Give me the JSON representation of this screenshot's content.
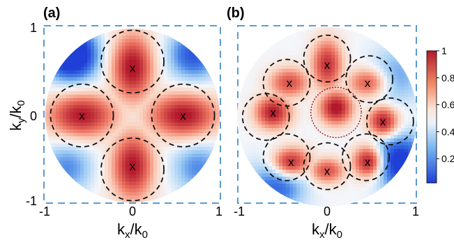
{
  "chart_data": [
    {
      "type": "heatmap",
      "panel_label": "(a)",
      "xlabel": "k_x/k_0",
      "ylabel": "k_y/k_0",
      "xlim": [
        -1,
        1
      ],
      "ylim": [
        -1,
        1
      ],
      "xticks": [
        "-1",
        "0",
        "1"
      ],
      "yticks": [
        "-1",
        "0",
        "1"
      ],
      "domain_shape": "unit disk",
      "peaks": [
        {
          "x": 0.0,
          "y": 0.55,
          "amp": 1.0,
          "sx": 0.16,
          "sy": 0.26,
          "marker": "x"
        },
        {
          "x": -0.58,
          "y": 0.0,
          "amp": 0.95,
          "sx": 0.27,
          "sy": 0.17,
          "marker": "x"
        },
        {
          "x": 0.58,
          "y": 0.0,
          "amp": 0.98,
          "sx": 0.27,
          "sy": 0.17,
          "marker": "x"
        },
        {
          "x": 0.0,
          "y": -0.58,
          "amp": 0.97,
          "sx": 0.16,
          "sy": 0.26,
          "marker": "x"
        }
      ],
      "circles": [
        {
          "x": 0.0,
          "y": 0.62,
          "r": 0.36,
          "style": "black-dashed"
        },
        {
          "x": -0.58,
          "y": 0.0,
          "r": 0.36,
          "style": "black-dashed"
        },
        {
          "x": 0.58,
          "y": 0.0,
          "r": 0.36,
          "style": "black-dashed"
        },
        {
          "x": 0.0,
          "y": -0.62,
          "r": 0.36,
          "style": "black-dashed"
        }
      ],
      "low_regions": [
        {
          "x": -0.7,
          "y": 0.7,
          "depth": 0.8
        },
        {
          "x": 0.7,
          "y": 0.7,
          "depth": 0.45
        },
        {
          "x": -0.75,
          "y": -0.6,
          "depth": 0.3
        },
        {
          "x": 0.75,
          "y": -0.6,
          "depth": 0.3
        }
      ]
    },
    {
      "type": "heatmap",
      "panel_label": "(b)",
      "xlabel": "k_x/k_0",
      "ylabel": "",
      "xlim": [
        -1,
        1
      ],
      "ylim": [
        -1,
        1
      ],
      "xticks": [
        "-1",
        "0",
        "1"
      ],
      "domain_shape": "unit disk",
      "peaks": [
        {
          "x": 0.1,
          "y": 0.1,
          "amp": 1.0,
          "sx": 0.13,
          "sy": 0.13,
          "marker": "none"
        },
        {
          "x": 0.0,
          "y": 0.58,
          "amp": 0.85,
          "sx": 0.12,
          "sy": 0.2,
          "marker": "x"
        },
        {
          "x": -0.42,
          "y": 0.38,
          "amp": 0.7,
          "sx": 0.16,
          "sy": 0.12,
          "marker": "x"
        },
        {
          "x": 0.45,
          "y": 0.38,
          "amp": 0.65,
          "sx": 0.16,
          "sy": 0.12,
          "marker": "x"
        },
        {
          "x": -0.6,
          "y": 0.05,
          "amp": 0.95,
          "sx": 0.14,
          "sy": 0.13,
          "marker": "x"
        },
        {
          "x": 0.62,
          "y": -0.05,
          "amp": 0.9,
          "sx": 0.12,
          "sy": 0.12,
          "marker": "x"
        },
        {
          "x": -0.4,
          "y": -0.5,
          "amp": 0.85,
          "sx": 0.16,
          "sy": 0.12,
          "marker": "x"
        },
        {
          "x": 0.45,
          "y": -0.5,
          "amp": 0.9,
          "sx": 0.12,
          "sy": 0.13,
          "marker": "x"
        },
        {
          "x": 0.0,
          "y": -0.6,
          "amp": 0.7,
          "sx": 0.14,
          "sy": 0.1,
          "marker": "x"
        }
      ],
      "circles": [
        {
          "x": 0.0,
          "y": 0.65,
          "r": 0.26,
          "style": "black-dashed"
        },
        {
          "x": -0.45,
          "y": 0.38,
          "r": 0.26,
          "style": "black-dashed"
        },
        {
          "x": 0.47,
          "y": 0.42,
          "r": 0.26,
          "style": "black-dashed"
        },
        {
          "x": -0.68,
          "y": 0.0,
          "r": 0.26,
          "style": "black-dashed"
        },
        {
          "x": 0.7,
          "y": -0.05,
          "r": 0.26,
          "style": "black-dashed"
        },
        {
          "x": -0.45,
          "y": -0.45,
          "r": 0.26,
          "style": "black-dashed"
        },
        {
          "x": 0.43,
          "y": -0.45,
          "r": 0.26,
          "style": "black-dashed"
        },
        {
          "x": 0.0,
          "y": -0.55,
          "r": 0.26,
          "style": "black-dashed"
        },
        {
          "x": 0.1,
          "y": 0.05,
          "r": 0.28,
          "style": "red-dotted"
        }
      ],
      "low_regions": [
        {
          "x": 0.8,
          "y": -0.5,
          "depth": 0.6
        },
        {
          "x": -0.55,
          "y": -0.75,
          "depth": 0.4
        },
        {
          "x": 0.75,
          "y": 0.45,
          "depth": 0.25
        }
      ]
    }
  ],
  "colorbar": {
    "ticks": [
      {
        "value": 1,
        "label": "1"
      },
      {
        "value": 0.8,
        "label": "0.8"
      },
      {
        "value": 0.6,
        "label": "0.6"
      },
      {
        "value": 0.4,
        "label": "0.4"
      },
      {
        "value": 0.2,
        "label": "0.2"
      }
    ],
    "range": [
      0.02,
      1
    ]
  },
  "colors": {
    "frame": "#5b9bd5",
    "high": "#b2182b",
    "mid": "#f7f7f7",
    "low": "#1f3fd6"
  },
  "marker_glyph": "x"
}
